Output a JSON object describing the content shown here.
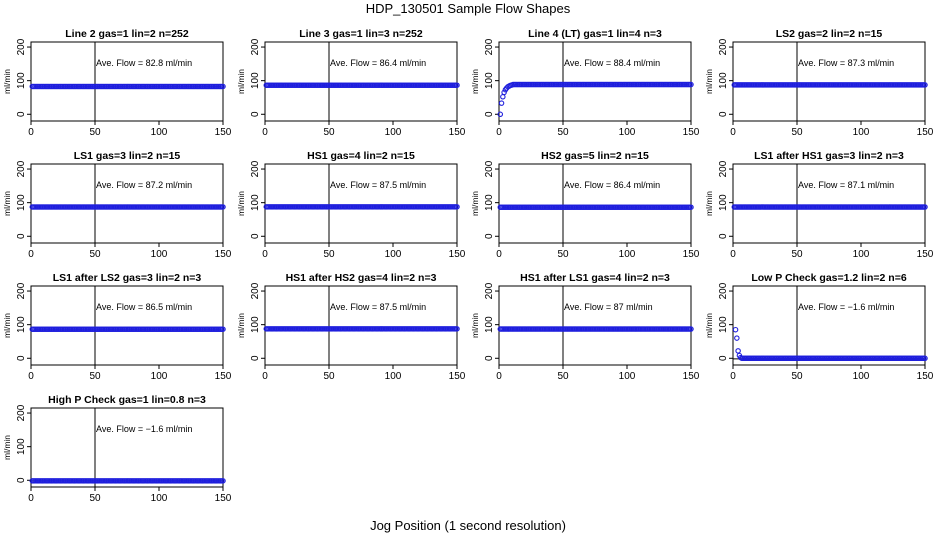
{
  "figure": {
    "title": "HDP_130501  Sample Flow Shapes",
    "xlabel": "Jog Position (1 second resolution)"
  },
  "style": {
    "point_color": "#1f1fdd",
    "line_color": "#000000"
  },
  "chart_data": [
    {
      "type": "scatter",
      "title": "Line 2 gas=1 lin=2 n=252",
      "annotation": "Ave. Flow =  82.8  ml/min",
      "ylabel": "ml/min",
      "xlim": [
        0,
        150
      ],
      "ylim": [
        -20,
        215
      ],
      "xticks": [
        0,
        50,
        100,
        150
      ],
      "yticks": [
        0,
        100,
        200
      ],
      "vline": 50,
      "hline": null,
      "series": [
        {
          "shape": "flat",
          "y": 82.8,
          "x_start": 1,
          "x_end": 150
        }
      ]
    },
    {
      "type": "scatter",
      "title": "Line 3 gas=1 lin=3 n=252",
      "annotation": "Ave. Flow =  86.4  ml/min",
      "ylabel": "ml/min",
      "xlim": [
        0,
        150
      ],
      "ylim": [
        -20,
        215
      ],
      "xticks": [
        0,
        50,
        100,
        150
      ],
      "yticks": [
        0,
        100,
        200
      ],
      "vline": 50,
      "hline": null,
      "series": [
        {
          "shape": "flat",
          "y": 86.4,
          "x_start": 1,
          "x_end": 150
        }
      ]
    },
    {
      "type": "scatter",
      "title": "Line 4 (LT) gas=1 lin=4 n=3",
      "annotation": "Ave. Flow =  88.4  ml/min",
      "ylabel": "ml/min",
      "xlim": [
        0,
        150
      ],
      "ylim": [
        -20,
        215
      ],
      "xticks": [
        0,
        50,
        100,
        150
      ],
      "yticks": [
        0,
        100,
        200
      ],
      "vline": 50,
      "hline": null,
      "series": [
        {
          "shape": "ramp",
          "points": [
            [
              1,
              0
            ],
            [
              2,
              33
            ],
            [
              3,
              52
            ],
            [
              4,
              65
            ],
            [
              5,
              73
            ],
            [
              6,
              78
            ],
            [
              7,
              82
            ],
            [
              8,
              84
            ],
            [
              9,
              86
            ],
            [
              10,
              87
            ]
          ],
          "y": 88.4,
          "x_start": 11,
          "x_end": 150
        }
      ]
    },
    {
      "type": "scatter",
      "title": "LS2 gas=2 lin=2 n=15",
      "annotation": "Ave. Flow =  87.3  ml/min",
      "ylabel": "ml/min",
      "xlim": [
        0,
        150
      ],
      "ylim": [
        -20,
        215
      ],
      "xticks": [
        0,
        50,
        100,
        150
      ],
      "yticks": [
        0,
        100,
        200
      ],
      "vline": 50,
      "hline": null,
      "series": [
        {
          "shape": "flat",
          "y": 87.3,
          "x_start": 1,
          "x_end": 150
        }
      ]
    },
    {
      "type": "scatter",
      "title": "LS1 gas=3 lin=2 n=15",
      "annotation": "Ave. Flow =  87.2  ml/min",
      "ylabel": "ml/min",
      "xlim": [
        0,
        150
      ],
      "ylim": [
        -20,
        215
      ],
      "xticks": [
        0,
        50,
        100,
        150
      ],
      "yticks": [
        0,
        100,
        200
      ],
      "vline": 50,
      "hline": null,
      "series": [
        {
          "shape": "flat",
          "y": 87.2,
          "x_start": 1,
          "x_end": 150
        }
      ]
    },
    {
      "type": "scatter",
      "title": "HS1 gas=4 lin=2 n=15",
      "annotation": "Ave. Flow =  87.5  ml/min",
      "ylabel": "ml/min",
      "xlim": [
        0,
        150
      ],
      "ylim": [
        -20,
        215
      ],
      "xticks": [
        0,
        50,
        100,
        150
      ],
      "yticks": [
        0,
        100,
        200
      ],
      "vline": 50,
      "hline": null,
      "series": [
        {
          "shape": "flat",
          "y": 87.5,
          "x_start": 1,
          "x_end": 150
        }
      ]
    },
    {
      "type": "scatter",
      "title": "HS2 gas=5 lin=2 n=15",
      "annotation": "Ave. Flow =  86.4  ml/min",
      "ylabel": "ml/min",
      "xlim": [
        0,
        150
      ],
      "ylim": [
        -20,
        215
      ],
      "xticks": [
        0,
        50,
        100,
        150
      ],
      "yticks": [
        0,
        100,
        200
      ],
      "vline": 50,
      "hline": null,
      "series": [
        {
          "shape": "flat",
          "y": 86.4,
          "x_start": 1,
          "x_end": 150
        }
      ]
    },
    {
      "type": "scatter",
      "title": "LS1 after HS1 gas=3 lin=2 n=3",
      "annotation": "Ave. Flow =  87.1  ml/min",
      "ylabel": "ml/min",
      "xlim": [
        0,
        150
      ],
      "ylim": [
        -20,
        215
      ],
      "xticks": [
        0,
        50,
        100,
        150
      ],
      "yticks": [
        0,
        100,
        200
      ],
      "vline": 50,
      "hline": null,
      "series": [
        {
          "shape": "flat",
          "y": 87.1,
          "x_start": 1,
          "x_end": 150
        }
      ]
    },
    {
      "type": "scatter",
      "title": "LS1 after LS2 gas=3 lin=2 n=3",
      "annotation": "Ave. Flow =  86.5  ml/min",
      "ylabel": "ml/min",
      "xlim": [
        0,
        150
      ],
      "ylim": [
        -20,
        215
      ],
      "xticks": [
        0,
        50,
        100,
        150
      ],
      "yticks": [
        0,
        100,
        200
      ],
      "vline": 50,
      "hline": null,
      "series": [
        {
          "shape": "flat",
          "y": 86.5,
          "x_start": 1,
          "x_end": 150
        }
      ]
    },
    {
      "type": "scatter",
      "title": "HS1 after HS2 gas=4 lin=2 n=3",
      "annotation": "Ave. Flow =  87.5  ml/min",
      "ylabel": "ml/min",
      "xlim": [
        0,
        150
      ],
      "ylim": [
        -20,
        215
      ],
      "xticks": [
        0,
        50,
        100,
        150
      ],
      "yticks": [
        0,
        100,
        200
      ],
      "vline": 50,
      "hline": null,
      "series": [
        {
          "shape": "flat",
          "y": 87.5,
          "x_start": 1,
          "x_end": 150
        }
      ]
    },
    {
      "type": "scatter",
      "title": "HS1 after LS1 gas=4 lin=2 n=3",
      "annotation": "Ave. Flow =  87  ml/min",
      "ylabel": "ml/min",
      "xlim": [
        0,
        150
      ],
      "ylim": [
        -20,
        215
      ],
      "xticks": [
        0,
        50,
        100,
        150
      ],
      "yticks": [
        0,
        100,
        200
      ],
      "vline": 50,
      "hline": null,
      "series": [
        {
          "shape": "flat",
          "y": 87,
          "x_start": 1,
          "x_end": 150
        }
      ]
    },
    {
      "type": "scatter",
      "title": "Low P Check gas=1.2 lin=2 n=6",
      "annotation": "Ave. Flow =  −1.6  ml/min",
      "ylabel": "ml/min",
      "xlim": [
        0,
        150
      ],
      "ylim": [
        -20,
        215
      ],
      "xticks": [
        0,
        50,
        100,
        150
      ],
      "yticks": [
        0,
        100,
        200
      ],
      "vline": 50,
      "hline": -1.6,
      "series": [
        {
          "shape": "decay",
          "points": [
            [
              2,
              85
            ],
            [
              3,
              60
            ],
            [
              4,
              22
            ],
            [
              5,
              8
            ],
            [
              6,
              2
            ]
          ],
          "y": 0,
          "x_start": 7,
          "x_end": 150
        }
      ]
    },
    {
      "type": "scatter",
      "title": "High P Check gas=1 lin=0.8 n=3",
      "annotation": "Ave. Flow =  −1.6  ml/min",
      "ylabel": "ml/min",
      "xlim": [
        0,
        150
      ],
      "ylim": [
        -20,
        215
      ],
      "xticks": [
        0,
        50,
        100,
        150
      ],
      "yticks": [
        0,
        100,
        200
      ],
      "vline": 50,
      "hline": -1.6,
      "series": [
        {
          "shape": "flat",
          "y": -1.6,
          "x_start": 1,
          "x_end": 150
        }
      ]
    }
  ]
}
